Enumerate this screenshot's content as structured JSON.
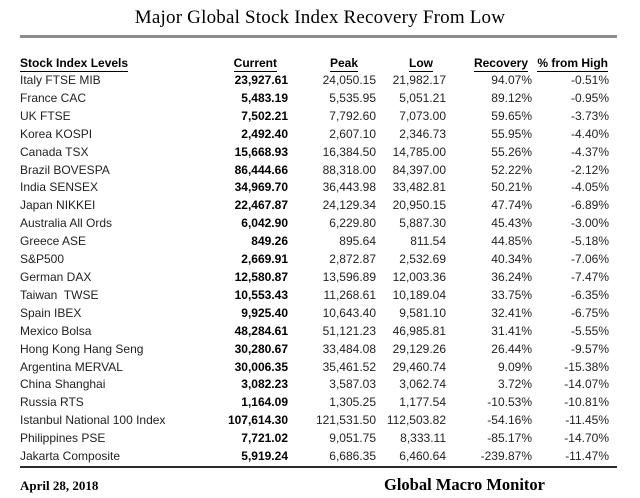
{
  "page": {
    "title": "Major Global Stock Index Recovery From Low",
    "footer_date": "April 28, 2018",
    "footer_source": "Global Macro Monitor"
  },
  "colors": {
    "top_rule": "#8c8c8c",
    "bottom_rule": "#2b2b2b",
    "body_text": "#1f1f1f",
    "emphasis_text": "#000000"
  },
  "chart_data": {
    "type": "table",
    "title": "Major Global Stock Index Recovery From Low",
    "columns": [
      "Stock Index Levels",
      "Current",
      "Peak",
      "Low",
      "Recovery",
      "% from High"
    ],
    "column_keys": [
      "stock-index-levels",
      "current",
      "peak",
      "low",
      "recovery",
      "pct-from-high"
    ],
    "rows": [
      [
        "Italy FTSE MIB",
        "23,927.61",
        "24,050.15",
        "21,982.17",
        "94.07%",
        "-0.51%"
      ],
      [
        "France CAC",
        "5,483.19",
        "5,535.95",
        "5,051.21",
        "89.12%",
        "-0.95%"
      ],
      [
        "UK FTSE",
        "7,502.21",
        "7,792.60",
        "7,073.00",
        "59.65%",
        "-3.73%"
      ],
      [
        "Korea KOSPI",
        "2,492.40",
        "2,607.10",
        "2,346.73",
        "55.95%",
        "-4.40%"
      ],
      [
        "Canada TSX",
        "15,668.93",
        "16,384.50",
        "14,785.00",
        "55.26%",
        "-4.37%"
      ],
      [
        "Brazil BOVESPA",
        "86,444.66",
        "88,318.00",
        "84,397.00",
        "52.22%",
        "-2.12%"
      ],
      [
        "India SENSEX",
        "34,969.70",
        "36,443.98",
        "33,482.81",
        "50.21%",
        "-4.05%"
      ],
      [
        "Japan NIKKEI",
        "22,467.87",
        "24,129.34",
        "20,950.15",
        "47.74%",
        "-6.89%"
      ],
      [
        "Australia All Ords",
        "6,042.90",
        "6,229.80",
        "5,887.30",
        "45.43%",
        "-3.00%"
      ],
      [
        "Greece ASE",
        "849.26",
        "895.64",
        "811.54",
        "44.85%",
        "-5.18%"
      ],
      [
        "S&P500",
        "2,669.91",
        "2,872.87",
        "2,532.69",
        "40.34%",
        "-7.06%"
      ],
      [
        "German DAX",
        "12,580.87",
        "13,596.89",
        "12,003.36",
        "36.24%",
        "-7.47%"
      ],
      [
        "Taiwan  TWSE",
        "10,553.43",
        "11,268.61",
        "10,189.04",
        "33.75%",
        "-6.35%"
      ],
      [
        "Spain IBEX",
        "9,925.40",
        "10,643.40",
        "9,581.10",
        "32.41%",
        "-6.75%"
      ],
      [
        "Mexico Bolsa",
        "48,284.61",
        "51,121.23",
        "46,985.81",
        "31.41%",
        "-5.55%"
      ],
      [
        "Hong Kong Hang Seng",
        "30,280.67",
        "33,484.08",
        "29,129.26",
        "26.44%",
        "-9.57%"
      ],
      [
        "Argentina MERVAL",
        "30,006.35",
        "35,461.52",
        "29,460.74",
        "9.09%",
        "-15.38%"
      ],
      [
        "China Shanghai",
        "3,082.23",
        "3,587.03",
        "3,062.74",
        "3.72%",
        "-14.07%"
      ],
      [
        "Russia RTS",
        "1,164.09",
        "1,305.25",
        "1,177.54",
        "-10.53%",
        "-10.81%"
      ],
      [
        "Istanbul National 100 Index",
        "107,614.30",
        "121,531.50",
        "112,503.82",
        "-54.16%",
        "-11.45%"
      ],
      [
        "Philippines PSE",
        "7,721.02",
        "9,051.75",
        "8,333.11",
        "-85.17%",
        "-14.70%"
      ],
      [
        "Jakarta Composite",
        "5,919.24",
        "6,686.35",
        "6,460.64",
        "-239.87%",
        "-11.47%"
      ]
    ]
  }
}
